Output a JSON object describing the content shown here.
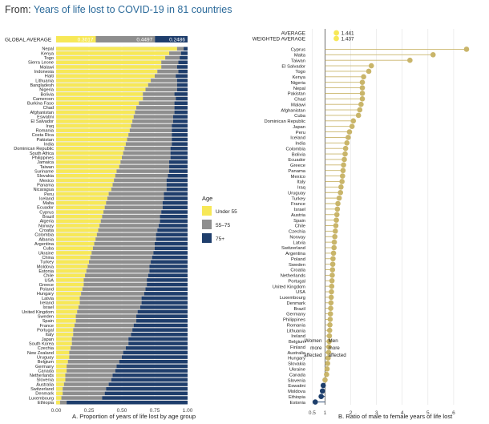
{
  "header": {
    "prefix": "From: ",
    "title": "Years of life lost to COVID-19 in 81 countries"
  },
  "colors": {
    "under55": "#f7e857",
    "mid": "#8e8e8e",
    "old": "#1f3e6c",
    "dot": "#c9b56a",
    "dotLow": "#1d3e6b",
    "avgDot": "#f7e857",
    "refLine": "#6f6f6f",
    "grid": "#e2e2e2",
    "title": "#2b6a9a"
  },
  "chart_data": [
    {
      "type": "bar",
      "orientation": "horizontal",
      "stacked": true,
      "xlabel": "A. Proportion of years of life lost by age group",
      "xlim": [
        0,
        1
      ],
      "xticks": [
        "0.00",
        "0.25",
        "0.50",
        "0.75",
        "1.00"
      ],
      "average_label": "GLOBAL AVERAGE",
      "average_values": [
        0.3017,
        0.4497,
        0.2486
      ],
      "average_value_labels": [
        "0.3017",
        "0.4497",
        "0.2486"
      ],
      "legend_title": "Age",
      "legend_position": "right",
      "series": [
        {
          "name": "Under 55",
          "color": "#f7e857"
        },
        {
          "name": "55–75",
          "color": "#8e8e8e"
        },
        {
          "name": "75+",
          "color": "#1f3e6c"
        }
      ],
      "categories": [
        "Nepal",
        "Kenya",
        "Togo",
        "Sierra Leone",
        "Malawi",
        "Indonesia",
        "Haiti",
        "Lithuania",
        "Bangladesh",
        "Nigeria",
        "Bolivia",
        "Cameroon",
        "Burkina Faso",
        "Chad",
        "Afghanistan",
        "Eswatini",
        "El Salvador",
        "Iraq",
        "Romania",
        "Costa Rica",
        "Pakistan",
        "India",
        "Dominican Republic",
        "South Africa",
        "Philippines",
        "Jamaica",
        "Taiwan",
        "Suriname",
        "Slovakia",
        "Mexico",
        "Panama",
        "Nicaragua",
        "Peru",
        "Iceland",
        "Malta",
        "Ecuador",
        "Cyprus",
        "Brazil",
        "Algeria",
        "Norway",
        "Croatia",
        "Colombia",
        "Albania",
        "Argentina",
        "Cuba",
        "Ukraine",
        "China",
        "Turkey",
        "Moldova",
        "Estonia",
        "Chile",
        "USA",
        "Greece",
        "Poland",
        "Hungary",
        "Latvia",
        "Ireland",
        "Israel",
        "United Kingdom",
        "Sweden",
        "Spain",
        "France",
        "Portugal",
        "Italy",
        "Japan",
        "South Korea",
        "Czechia",
        "New Zealand",
        "Uruguay",
        "Belgium",
        "Germany",
        "Canada",
        "Netherlands",
        "Slovenia",
        "Australia",
        "Switzerland",
        "Denmark",
        "Luxembourg",
        "Ethiopia"
      ],
      "under55": [
        0.92,
        0.86,
        0.83,
        0.8,
        0.8,
        0.77,
        0.75,
        0.72,
        0.7,
        0.68,
        0.66,
        0.66,
        0.63,
        0.61,
        0.6,
        0.59,
        0.58,
        0.57,
        0.56,
        0.55,
        0.54,
        0.53,
        0.52,
        0.51,
        0.5,
        0.49,
        0.48,
        0.46,
        0.45,
        0.44,
        0.43,
        0.42,
        0.4,
        0.39,
        0.38,
        0.37,
        0.36,
        0.35,
        0.34,
        0.33,
        0.32,
        0.31,
        0.3,
        0.29,
        0.28,
        0.27,
        0.26,
        0.25,
        0.24,
        0.23,
        0.22,
        0.21,
        0.21,
        0.2,
        0.19,
        0.18,
        0.18,
        0.17,
        0.16,
        0.15,
        0.15,
        0.14,
        0.13,
        0.13,
        0.12,
        0.12,
        0.11,
        0.1,
        0.1,
        0.09,
        0.08,
        0.08,
        0.07,
        0.07,
        0.06,
        0.05,
        0.05,
        0.04,
        0.03
      ],
      "mid": [
        0.05,
        0.09,
        0.11,
        0.13,
        0.12,
        0.16,
        0.16,
        0.2,
        0.22,
        0.24,
        0.24,
        0.25,
        0.27,
        0.29,
        0.3,
        0.3,
        0.31,
        0.31,
        0.32,
        0.33,
        0.34,
        0.35,
        0.35,
        0.36,
        0.37,
        0.37,
        0.38,
        0.4,
        0.4,
        0.4,
        0.41,
        0.42,
        0.42,
        0.43,
        0.43,
        0.44,
        0.44,
        0.44,
        0.45,
        0.45,
        0.45,
        0.45,
        0.46,
        0.46,
        0.47,
        0.47,
        0.47,
        0.47,
        0.47,
        0.48,
        0.48,
        0.48,
        0.48,
        0.48,
        0.48,
        0.47,
        0.47,
        0.47,
        0.46,
        0.46,
        0.46,
        0.45,
        0.45,
        0.44,
        0.43,
        0.43,
        0.42,
        0.41,
        0.4,
        0.39,
        0.38,
        0.37,
        0.36,
        0.35,
        0.34,
        0.33,
        0.32,
        0.31,
        0.05
      ]
    },
    {
      "type": "scatter",
      "style": "lollipop",
      "xlabel": "B. Ratio of male to female years of life lost",
      "xlim": [
        0.3,
        7.0
      ],
      "xticks": [
        "0.5",
        "1",
        "2",
        "3",
        "4",
        "5",
        "6"
      ],
      "reference_line": 1.0,
      "annotations": {
        "left": [
          "Women",
          "more",
          "affected"
        ],
        "right": [
          "Men",
          "more",
          "affected"
        ]
      },
      "summary": [
        {
          "label": "AVERAGE",
          "value": 1.441,
          "value_label": "1.441"
        },
        {
          "label": "WEIGHTED AVERAGE",
          "value": 1.437,
          "value_label": "1.437"
        }
      ],
      "categories": [
        "Cyprus",
        "Malta",
        "Taiwan",
        "El Salvador",
        "Togo",
        "Kenya",
        "Nigeria",
        "Nepal",
        "Pakistan",
        "Chad",
        "Malawi",
        "Afghanistan",
        "Cuba",
        "Dominican Republic",
        "Japan",
        "Peru",
        "Iceland",
        "India",
        "Colombia",
        "Bolivia",
        "Ecuador",
        "Greece",
        "Panama",
        "Mexico",
        "Italy",
        "Iraq",
        "Uruguay",
        "Turkey",
        "France",
        "Israel",
        "Austria",
        "Spain",
        "Chile",
        "Czechia",
        "Norway",
        "Latvia",
        "Switzerland",
        "Argentina",
        "Poland",
        "Sweden",
        "Croatia",
        "Netherlands",
        "Portugal",
        "United Kingdom",
        "USA",
        "Luxembourg",
        "Denmark",
        "Brazil",
        "Germany",
        "Philippines",
        "Romania",
        "Lithuania",
        "Ireland",
        "Belgium",
        "Finland",
        "Australia",
        "Hungary",
        "Slovakia",
        "Ukraine",
        "Canada",
        "Slovenia",
        "Eswatini",
        "Moldova",
        "Ethiopia",
        "Estonia"
      ],
      "values": [
        6.5,
        5.2,
        4.3,
        2.8,
        2.7,
        2.5,
        2.45,
        2.45,
        2.45,
        2.45,
        2.4,
        2.35,
        2.3,
        2.1,
        2.05,
        1.95,
        1.9,
        1.85,
        1.8,
        1.78,
        1.75,
        1.72,
        1.7,
        1.68,
        1.66,
        1.62,
        1.6,
        1.55,
        1.5,
        1.48,
        1.46,
        1.44,
        1.42,
        1.4,
        1.38,
        1.36,
        1.35,
        1.33,
        1.31,
        1.3,
        1.29,
        1.28,
        1.27,
        1.26,
        1.25,
        1.24,
        1.23,
        1.22,
        1.21,
        1.2,
        1.19,
        1.18,
        1.17,
        1.16,
        1.15,
        1.14,
        1.12,
        1.1,
        1.08,
        1.06,
        1.0,
        0.93,
        0.9,
        0.85,
        0.62
      ]
    }
  ]
}
